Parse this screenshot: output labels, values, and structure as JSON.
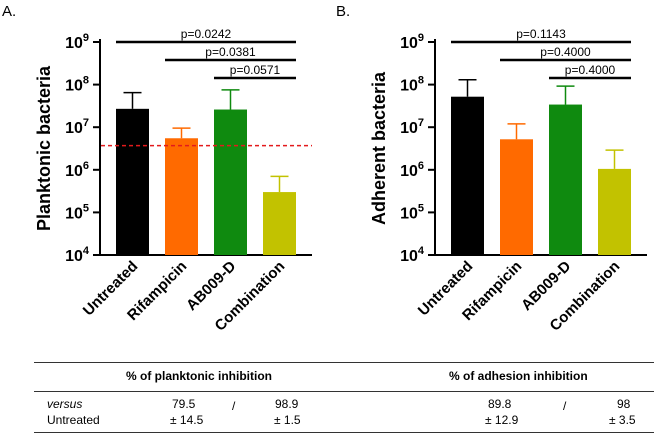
{
  "chart_data": [
    {
      "type": "bar",
      "panel_label": "A.",
      "ylabel": "Planktonic bacteria",
      "yscale": "log10",
      "ylim_exp": [
        4,
        9
      ],
      "ytick_base": "10",
      "ytick_exponents": [
        "4",
        "5",
        "6",
        "7",
        "8",
        "9"
      ],
      "categories": [
        "Untreated",
        "Rifampicin",
        "AB009-D",
        "Combination"
      ],
      "values": [
        27000000,
        5500000,
        26000000,
        300000
      ],
      "error_upper": [
        65000000,
        9500000,
        75000000,
        700000
      ],
      "colors": [
        "#000000",
        "#ff6a00",
        "#0f8a0f",
        "#c2c200"
      ],
      "reference_line": {
        "value": 3700000,
        "color": "#e31a1c",
        "style": "dashed"
      },
      "comparisons": [
        {
          "label": "p=0.0242",
          "from": 0,
          "to": 3
        },
        {
          "label": "p=0.0381",
          "from": 1,
          "to": 3
        },
        {
          "label": "p=0.0571",
          "from": 2,
          "to": 3
        }
      ]
    },
    {
      "type": "bar",
      "panel_label": "B.",
      "ylabel": "Adherent bacteria",
      "yscale": "log10",
      "ylim_exp": [
        4,
        9
      ],
      "ytick_base": "10",
      "ytick_exponents": [
        "4",
        "5",
        "6",
        "7",
        "8",
        "9"
      ],
      "categories": [
        "Untreated",
        "Rifampicin",
        "AB009-D",
        "Combination"
      ],
      "values": [
        52000000,
        5200000,
        34000000,
        1050000
      ],
      "error_upper": [
        130000000,
        12000000,
        92000000,
        2900000
      ],
      "colors": [
        "#000000",
        "#ff6a00",
        "#0f8a0f",
        "#c2c200"
      ],
      "reference_line": null,
      "comparisons": [
        {
          "label": "p=0.1143",
          "from": 0,
          "to": 3
        },
        {
          "label": "p=0.4000",
          "from": 1,
          "to": 3
        },
        {
          "label": "p=0.4000",
          "from": 2,
          "to": 3
        }
      ]
    }
  ],
  "table": {
    "left_header": "% of planktonic inhibition",
    "right_header": "% of adhesion inhibition",
    "row_label_line1": "versus",
    "row_label_line2": "Untreated",
    "separator": "/",
    "left": {
      "a_value": "79.5",
      "a_err": "± 14.5",
      "b_value": "98.9",
      "b_err": "± 1.5"
    },
    "right": {
      "a_value": "89.8",
      "a_err": "± 12.9",
      "b_value": "98",
      "b_err": "± 3.5"
    }
  }
}
